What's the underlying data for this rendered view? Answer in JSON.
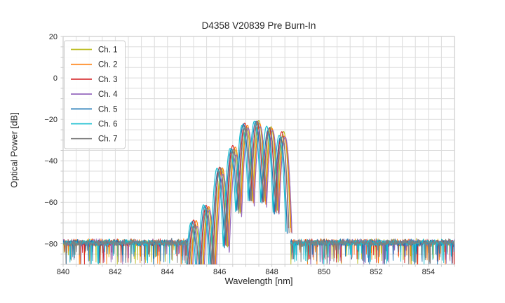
{
  "figure": {
    "background": "#ffffff",
    "text_color": "#262626",
    "grid_color": "#dcdcdc",
    "spine_color": "#cccccc",
    "legend_border": "#cccccc"
  },
  "chart_data": {
    "type": "line",
    "title": "D4358 V20839 Pre Burn-In",
    "xlabel": "Wavelength [nm]",
    "ylabel": "Optical Power [dB]",
    "xlim": [
      840,
      855
    ],
    "ylim": [
      -90,
      20
    ],
    "xticks": [
      840,
      842,
      844,
      846,
      848,
      850,
      852,
      854
    ],
    "yticks": [
      20,
      0,
      -20,
      -40,
      -60,
      -80
    ],
    "grid": {
      "visible": true,
      "x_step_nm": 0.5,
      "y_step_db": 5
    },
    "legend": {
      "position": "upper-left"
    },
    "series": [
      {
        "name": "Ch. 1",
        "color": "#bcbd22",
        "offset_nm": 0.05,
        "level_adj_db": 0.5
      },
      {
        "name": "Ch. 2",
        "color": "#ff7f0e",
        "offset_nm": 0.08,
        "level_adj_db": 0.2
      },
      {
        "name": "Ch. 3",
        "color": "#d62728",
        "offset_nm": -0.02,
        "level_adj_db": 0.6
      },
      {
        "name": "Ch. 4",
        "color": "#9467bd",
        "offset_nm": 0.11,
        "level_adj_db": -1.8
      },
      {
        "name": "Ch. 5",
        "color": "#1f77b4",
        "offset_nm": -0.07,
        "level_adj_db": -0.3
      },
      {
        "name": "Ch. 6",
        "color": "#17becf",
        "offset_nm": -0.12,
        "level_adj_db": 0.4
      },
      {
        "name": "Ch. 7",
        "color": "#7f7f7f",
        "offset_nm": 0.0,
        "level_adj_db": 0.0
      }
    ],
    "spectrum_model": {
      "comment_readings": "lobe peaks read from plot: [center_nm, peak_dB]",
      "lobes": [
        [
          845.02,
          -70.0
        ],
        [
          845.5,
          -62.5
        ],
        [
          846.02,
          -44.0
        ],
        [
          846.52,
          -34.5
        ],
        [
          846.98,
          -23.0
        ],
        [
          847.45,
          -21.3
        ],
        [
          847.92,
          -24.0
        ],
        [
          848.4,
          -27.3
        ]
      ],
      "fringe_halfwidth_nm": 0.235,
      "null_depth_db": 38,
      "signal_range_nm": [
        844.82,
        848.66
      ],
      "noise_range_left_nm": [
        840.0,
        844.78
      ],
      "noise_range_right_nm": [
        848.72,
        855.0
      ],
      "noise_floor_db": -79.5,
      "noise_spread_db": 2.2,
      "noise_top_clip_db": -74.3,
      "peak_power_db": -21.3,
      "peak_wavelength_nm": 847.45
    }
  }
}
